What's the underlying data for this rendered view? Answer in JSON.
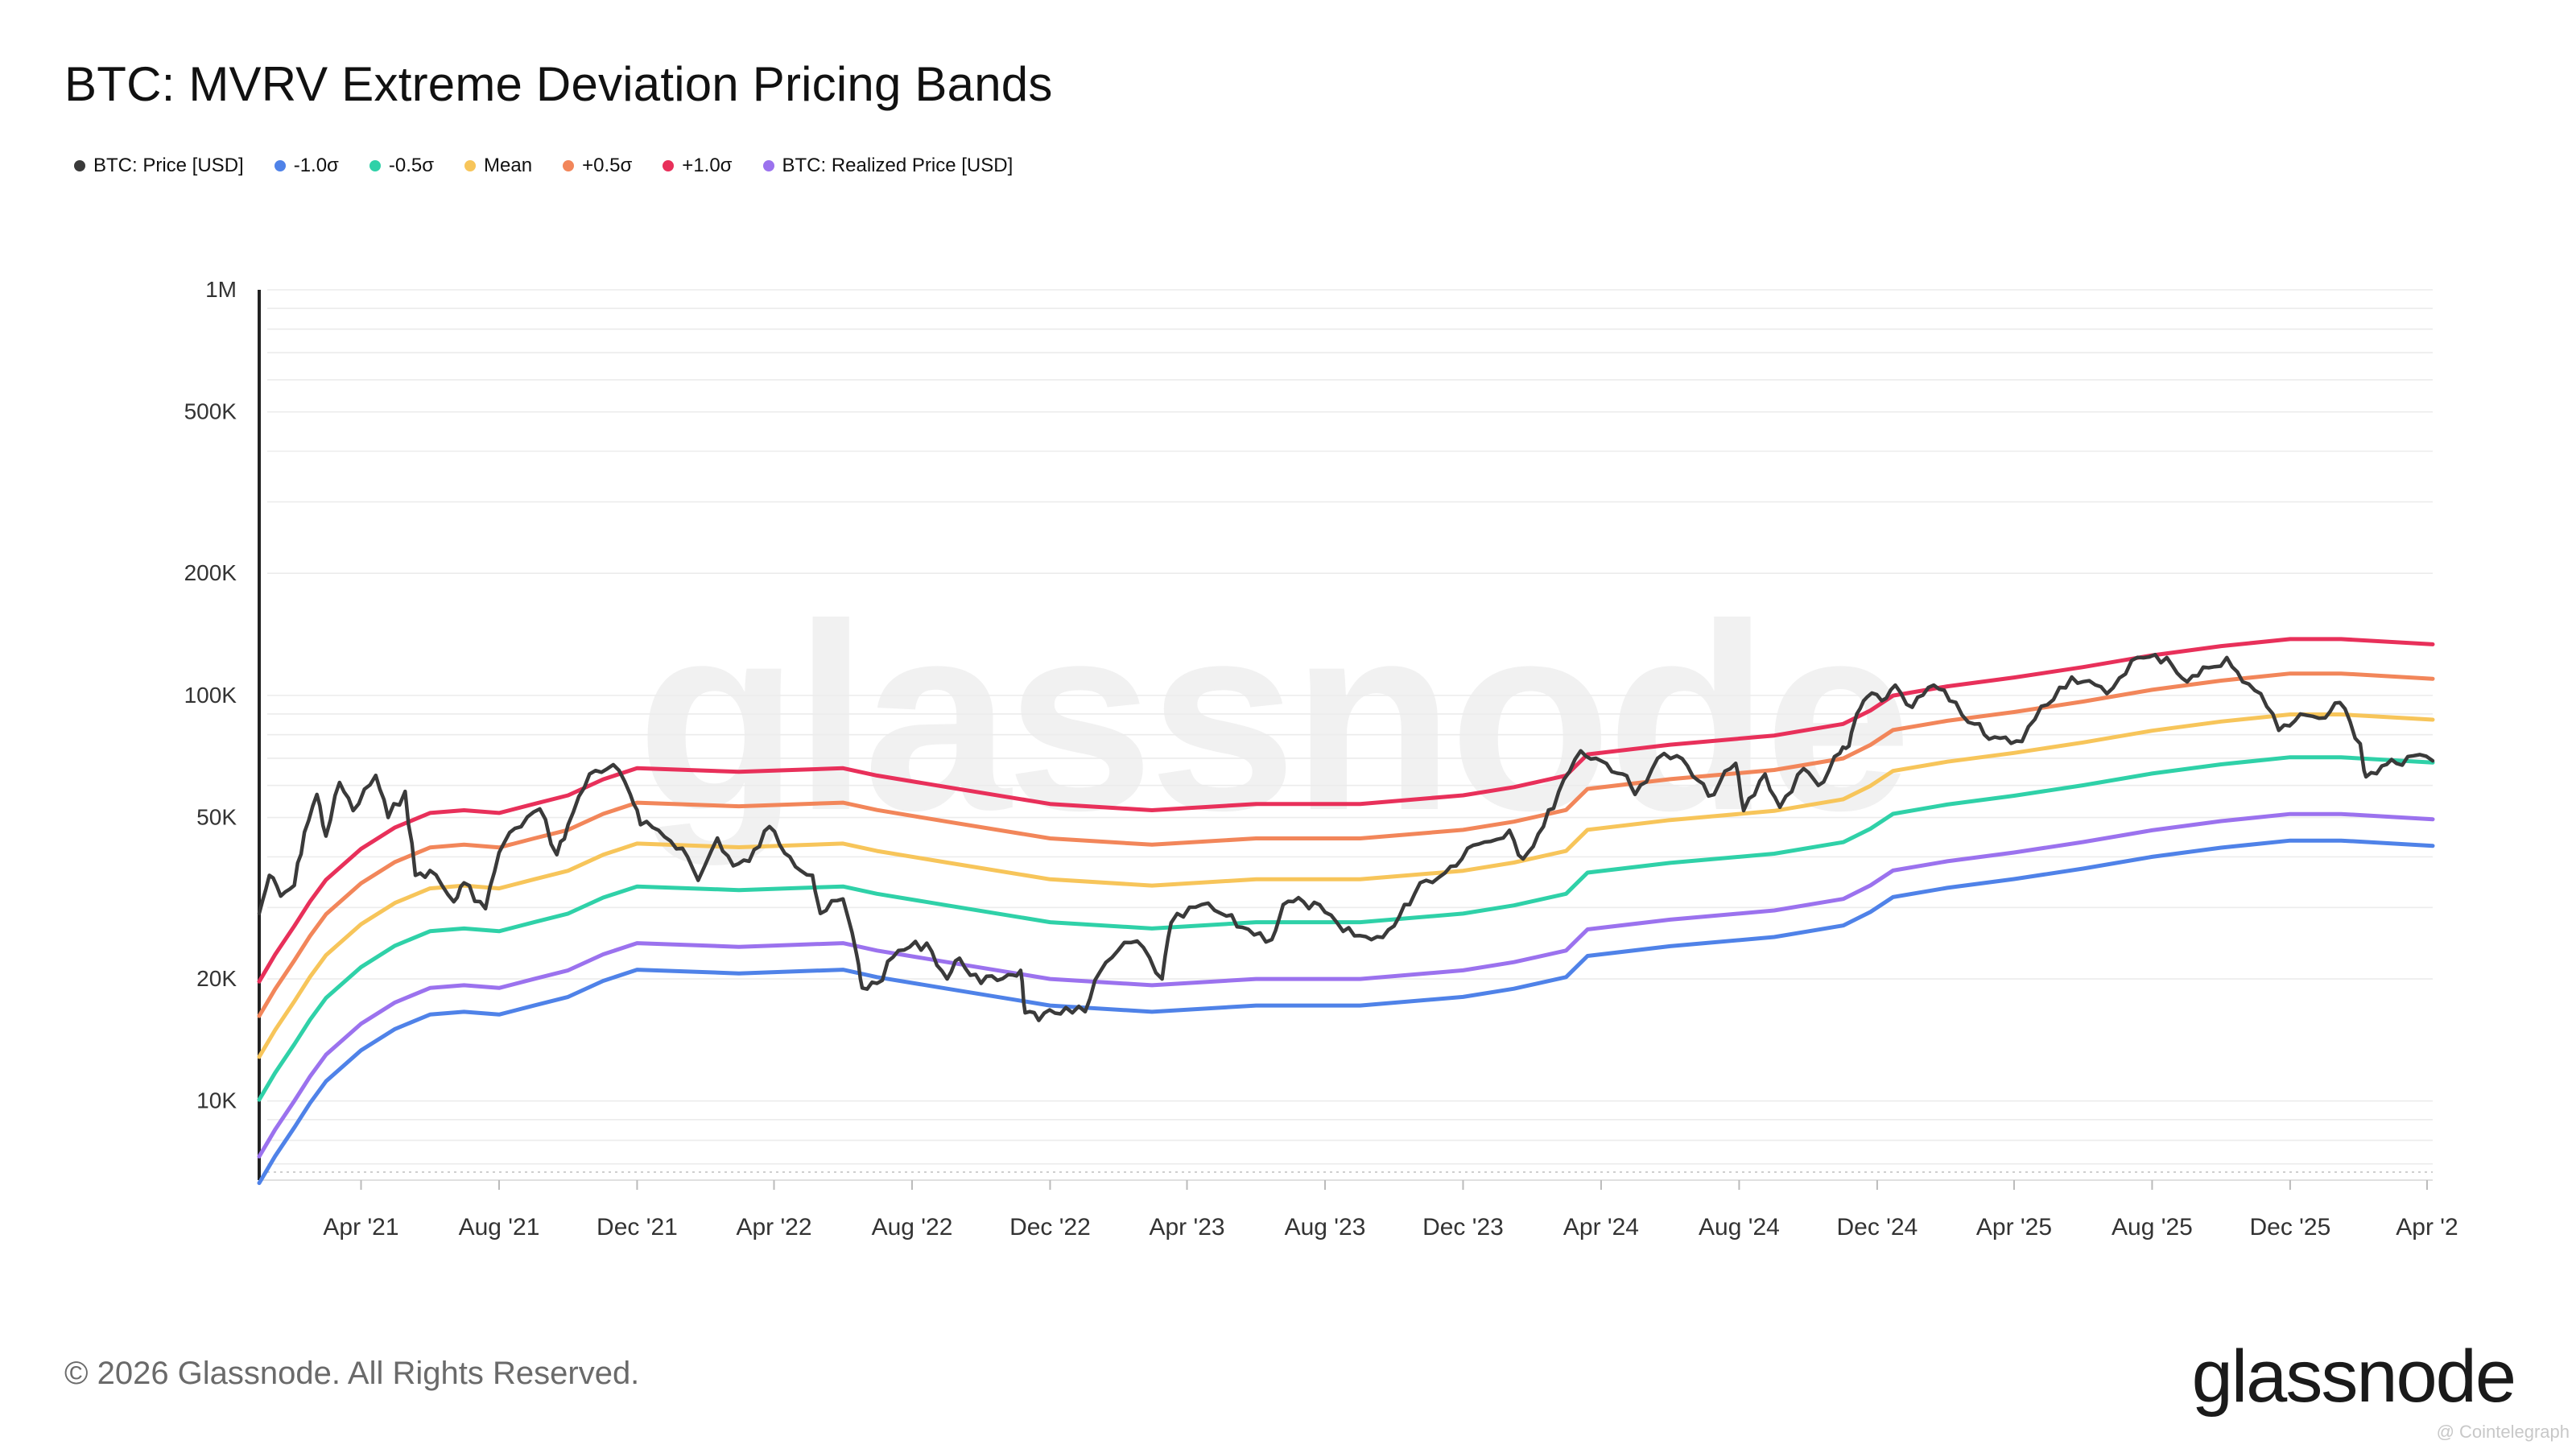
{
  "title": "BTC: MVRV Extreme Deviation Pricing Bands",
  "footer": "© 2026 Glassnode. All Rights Reserved.",
  "logo": "glassnode",
  "watermark": "glassnode",
  "credit": "@ Cointelegraph",
  "legend": [
    {
      "label": "BTC: Price [USD]",
      "color": "#3a3a3a"
    },
    {
      "label": "-1.0σ",
      "color": "#4f82e8"
    },
    {
      "label": "-0.5σ",
      "color": "#2fd1a8"
    },
    {
      "label": "Mean",
      "color": "#f7c55a"
    },
    {
      "label": "+0.5σ",
      "color": "#f2865a"
    },
    {
      "label": "+1.0σ",
      "color": "#e8305a"
    },
    {
      "label": "BTC: Realized Price [USD]",
      "color": "#9b72ee"
    }
  ],
  "chart_data": {
    "type": "line",
    "y_scale": "log",
    "ylim": [
      6500,
      1000000
    ],
    "xlim": [
      "2021-01-01",
      "2026-04-06"
    ],
    "grid": true,
    "legend_position": "top-left",
    "y_tick_labels": [
      {
        "value": 10000,
        "label": "10K"
      },
      {
        "value": 20000,
        "label": "20K"
      },
      {
        "value": 50000,
        "label": "50K"
      },
      {
        "value": 100000,
        "label": "100K"
      },
      {
        "value": 200000,
        "label": "200K"
      },
      {
        "value": 500000,
        "label": "500K"
      },
      {
        "value": 1000000,
        "label": "1M"
      }
    ],
    "x_tick_labels": [
      {
        "date": "2021-04-01",
        "label": "Apr '21"
      },
      {
        "date": "2021-08-01",
        "label": "Aug '21"
      },
      {
        "date": "2021-12-01",
        "label": "Dec '21"
      },
      {
        "date": "2022-04-01",
        "label": "Apr '22"
      },
      {
        "date": "2022-08-01",
        "label": "Aug '22"
      },
      {
        "date": "2022-12-01",
        "label": "Dec '22"
      },
      {
        "date": "2023-04-01",
        "label": "Apr '23"
      },
      {
        "date": "2023-08-01",
        "label": "Aug '23"
      },
      {
        "date": "2023-12-01",
        "label": "Dec '23"
      },
      {
        "date": "2024-04-01",
        "label": "Apr '24"
      },
      {
        "date": "2024-08-01",
        "label": "Aug '24"
      },
      {
        "date": "2024-12-01",
        "label": "Dec '24"
      },
      {
        "date": "2025-04-01",
        "label": "Apr '25"
      },
      {
        "date": "2025-08-01",
        "label": "Aug '25"
      },
      {
        "date": "2025-12-01",
        "label": "Dec '25"
      },
      {
        "date": "2026-04-01",
        "label": "Apr '2"
      }
    ],
    "realized_price_series": [
      "2021-01-01",
      "2021-01-15",
      "2021-02-01",
      "2021-02-15",
      "2021-03-01",
      "2021-04-01",
      "2021-05-01",
      "2021-06-01",
      "2021-07-01",
      "2021-08-01",
      "2021-09-01",
      "2021-10-01",
      "2021-11-01",
      "2021-12-01",
      "2022-03-01",
      "2022-06-01",
      "2022-07-01",
      "2022-09-01",
      "2022-12-01",
      "2023-03-01",
      "2023-06-01",
      "2023-09-01",
      "2023-12-01",
      "2024-01-15",
      "2024-03-01",
      "2024-03-20",
      "2024-06-01",
      "2024-09-01",
      "2024-11-01",
      "2024-11-25",
      "2024-12-15",
      "2025-02-01",
      "2025-04-01",
      "2025-06-01",
      "2025-08-01",
      "2025-10-01",
      "2025-12-01",
      "2026-01-15",
      "2026-04-06"
    ],
    "realized_price_values": [
      7300,
      8500,
      10000,
      11500,
      13000,
      15500,
      17500,
      19000,
      19300,
      19000,
      20000,
      21000,
      23000,
      24500,
      24000,
      24500,
      23500,
      22000,
      20000,
      19300,
      20000,
      20000,
      21000,
      22000,
      23500,
      26500,
      28000,
      29500,
      31500,
      34000,
      37000,
      39000,
      41000,
      43500,
      46500,
      49000,
      51000,
      51000,
      49500
    ],
    "band_multipliers": [
      {
        "name": "-1.0σ",
        "multiplier": 0.86,
        "color": "#4f82e8"
      },
      {
        "name": "-0.5σ",
        "multiplier": 1.38,
        "color": "#2fd1a8"
      },
      {
        "name": "Mean",
        "multiplier": 1.76,
        "color": "#f7c55a"
      },
      {
        "name": "+0.5σ",
        "multiplier": 2.22,
        "color": "#f2865a"
      },
      {
        "name": "+1.0σ",
        "multiplier": 2.7,
        "color": "#e8305a"
      }
    ],
    "price_series_dates": [
      "2021-01-01",
      "2021-01-10",
      "2021-01-20",
      "2021-02-01",
      "2021-02-10",
      "2021-02-21",
      "2021-03-01",
      "2021-03-13",
      "2021-03-25",
      "2021-04-14",
      "2021-04-25",
      "2021-05-10",
      "2021-05-19",
      "2021-06-01",
      "2021-06-22",
      "2021-07-01",
      "2021-07-20",
      "2021-08-01",
      "2021-08-15",
      "2021-09-06",
      "2021-09-21",
      "2021-10-01",
      "2021-10-20",
      "2021-11-10",
      "2021-11-25",
      "2021-12-04",
      "2021-12-20",
      "2022-01-10",
      "2022-01-24",
      "2022-02-10",
      "2022-02-24",
      "2022-03-10",
      "2022-03-28",
      "2022-04-15",
      "2022-05-05",
      "2022-05-12",
      "2022-06-01",
      "2022-06-13",
      "2022-06-18",
      "2022-07-01",
      "2022-07-20",
      "2022-08-14",
      "2022-09-01",
      "2022-09-12",
      "2022-10-01",
      "2022-10-25",
      "2022-11-05",
      "2022-11-09",
      "2022-11-21",
      "2022-12-15",
      "2023-01-01",
      "2023-01-14",
      "2023-01-30",
      "2023-02-16",
      "2023-03-10",
      "2023-03-18",
      "2023-04-14",
      "2023-05-01",
      "2023-05-20",
      "2023-06-15",
      "2023-06-25",
      "2023-07-13",
      "2023-08-01",
      "2023-08-17",
      "2023-09-11",
      "2023-10-01",
      "2023-10-24",
      "2023-11-15",
      "2023-12-05",
      "2023-12-20",
      "2024-01-11",
      "2024-01-23",
      "2024-02-10",
      "2024-02-28",
      "2024-03-14",
      "2024-04-01",
      "2024-04-20",
      "2024-05-01",
      "2024-05-21",
      "2024-06-07",
      "2024-07-05",
      "2024-07-29",
      "2024-08-05",
      "2024-08-24",
      "2024-09-06",
      "2024-09-27",
      "2024-10-10",
      "2024-10-29",
      "2024-11-06",
      "2024-11-13",
      "2024-11-22",
      "2024-12-05",
      "2024-12-17",
      "2025-01-01",
      "2025-01-20",
      "2025-02-03",
      "2025-02-25",
      "2025-03-10",
      "2025-04-08",
      "2025-04-25",
      "2025-05-22",
      "2025-06-22",
      "2025-07-14",
      "2025-08-14",
      "2025-09-01",
      "2025-09-20",
      "2025-10-06",
      "2025-10-20",
      "2025-11-05",
      "2025-11-21",
      "2025-12-10",
      "2026-01-01",
      "2026-01-14",
      "2026-02-01",
      "2026-02-06",
      "2026-02-20",
      "2026-03-05",
      "2026-03-20",
      "2026-04-06"
    ],
    "price_series_values": [
      29000,
      36000,
      32000,
      34000,
      46000,
      57000,
      45000,
      61000,
      52000,
      63500,
      50000,
      58000,
      36000,
      37000,
      31000,
      34500,
      29800,
      41000,
      47000,
      52500,
      40500,
      48000,
      64000,
      67500,
      57000,
      48000,
      46500,
      42000,
      35000,
      44500,
      38000,
      39000,
      47500,
      40000,
      36000,
      29000,
      31500,
      23000,
      19000,
      19500,
      23500,
      24500,
      20000,
      22500,
      19500,
      20500,
      21000,
      16500,
      15800,
      17000,
      16600,
      20800,
      23500,
      24800,
      20000,
      27500,
      30500,
      29000,
      26800,
      25000,
      30500,
      31000,
      29200,
      26200,
      25000,
      27000,
      34500,
      36500,
      42000,
      43500,
      46500,
      39500,
      47500,
      62000,
      73000,
      69000,
      64000,
      57000,
      70000,
      71000,
      56500,
      68000,
      52000,
      64000,
      53000,
      66000,
      60000,
      72000,
      75000,
      90000,
      99000,
      97000,
      106000,
      93500,
      106000,
      97000,
      85000,
      78000,
      77000,
      94000,
      111000,
      101000,
      122000,
      124000,
      108000,
      117000,
      124000,
      108000,
      101000,
      82000,
      90000,
      88000,
      96000,
      76000,
      63000,
      67000,
      68000,
      71000,
      69000
    ]
  }
}
